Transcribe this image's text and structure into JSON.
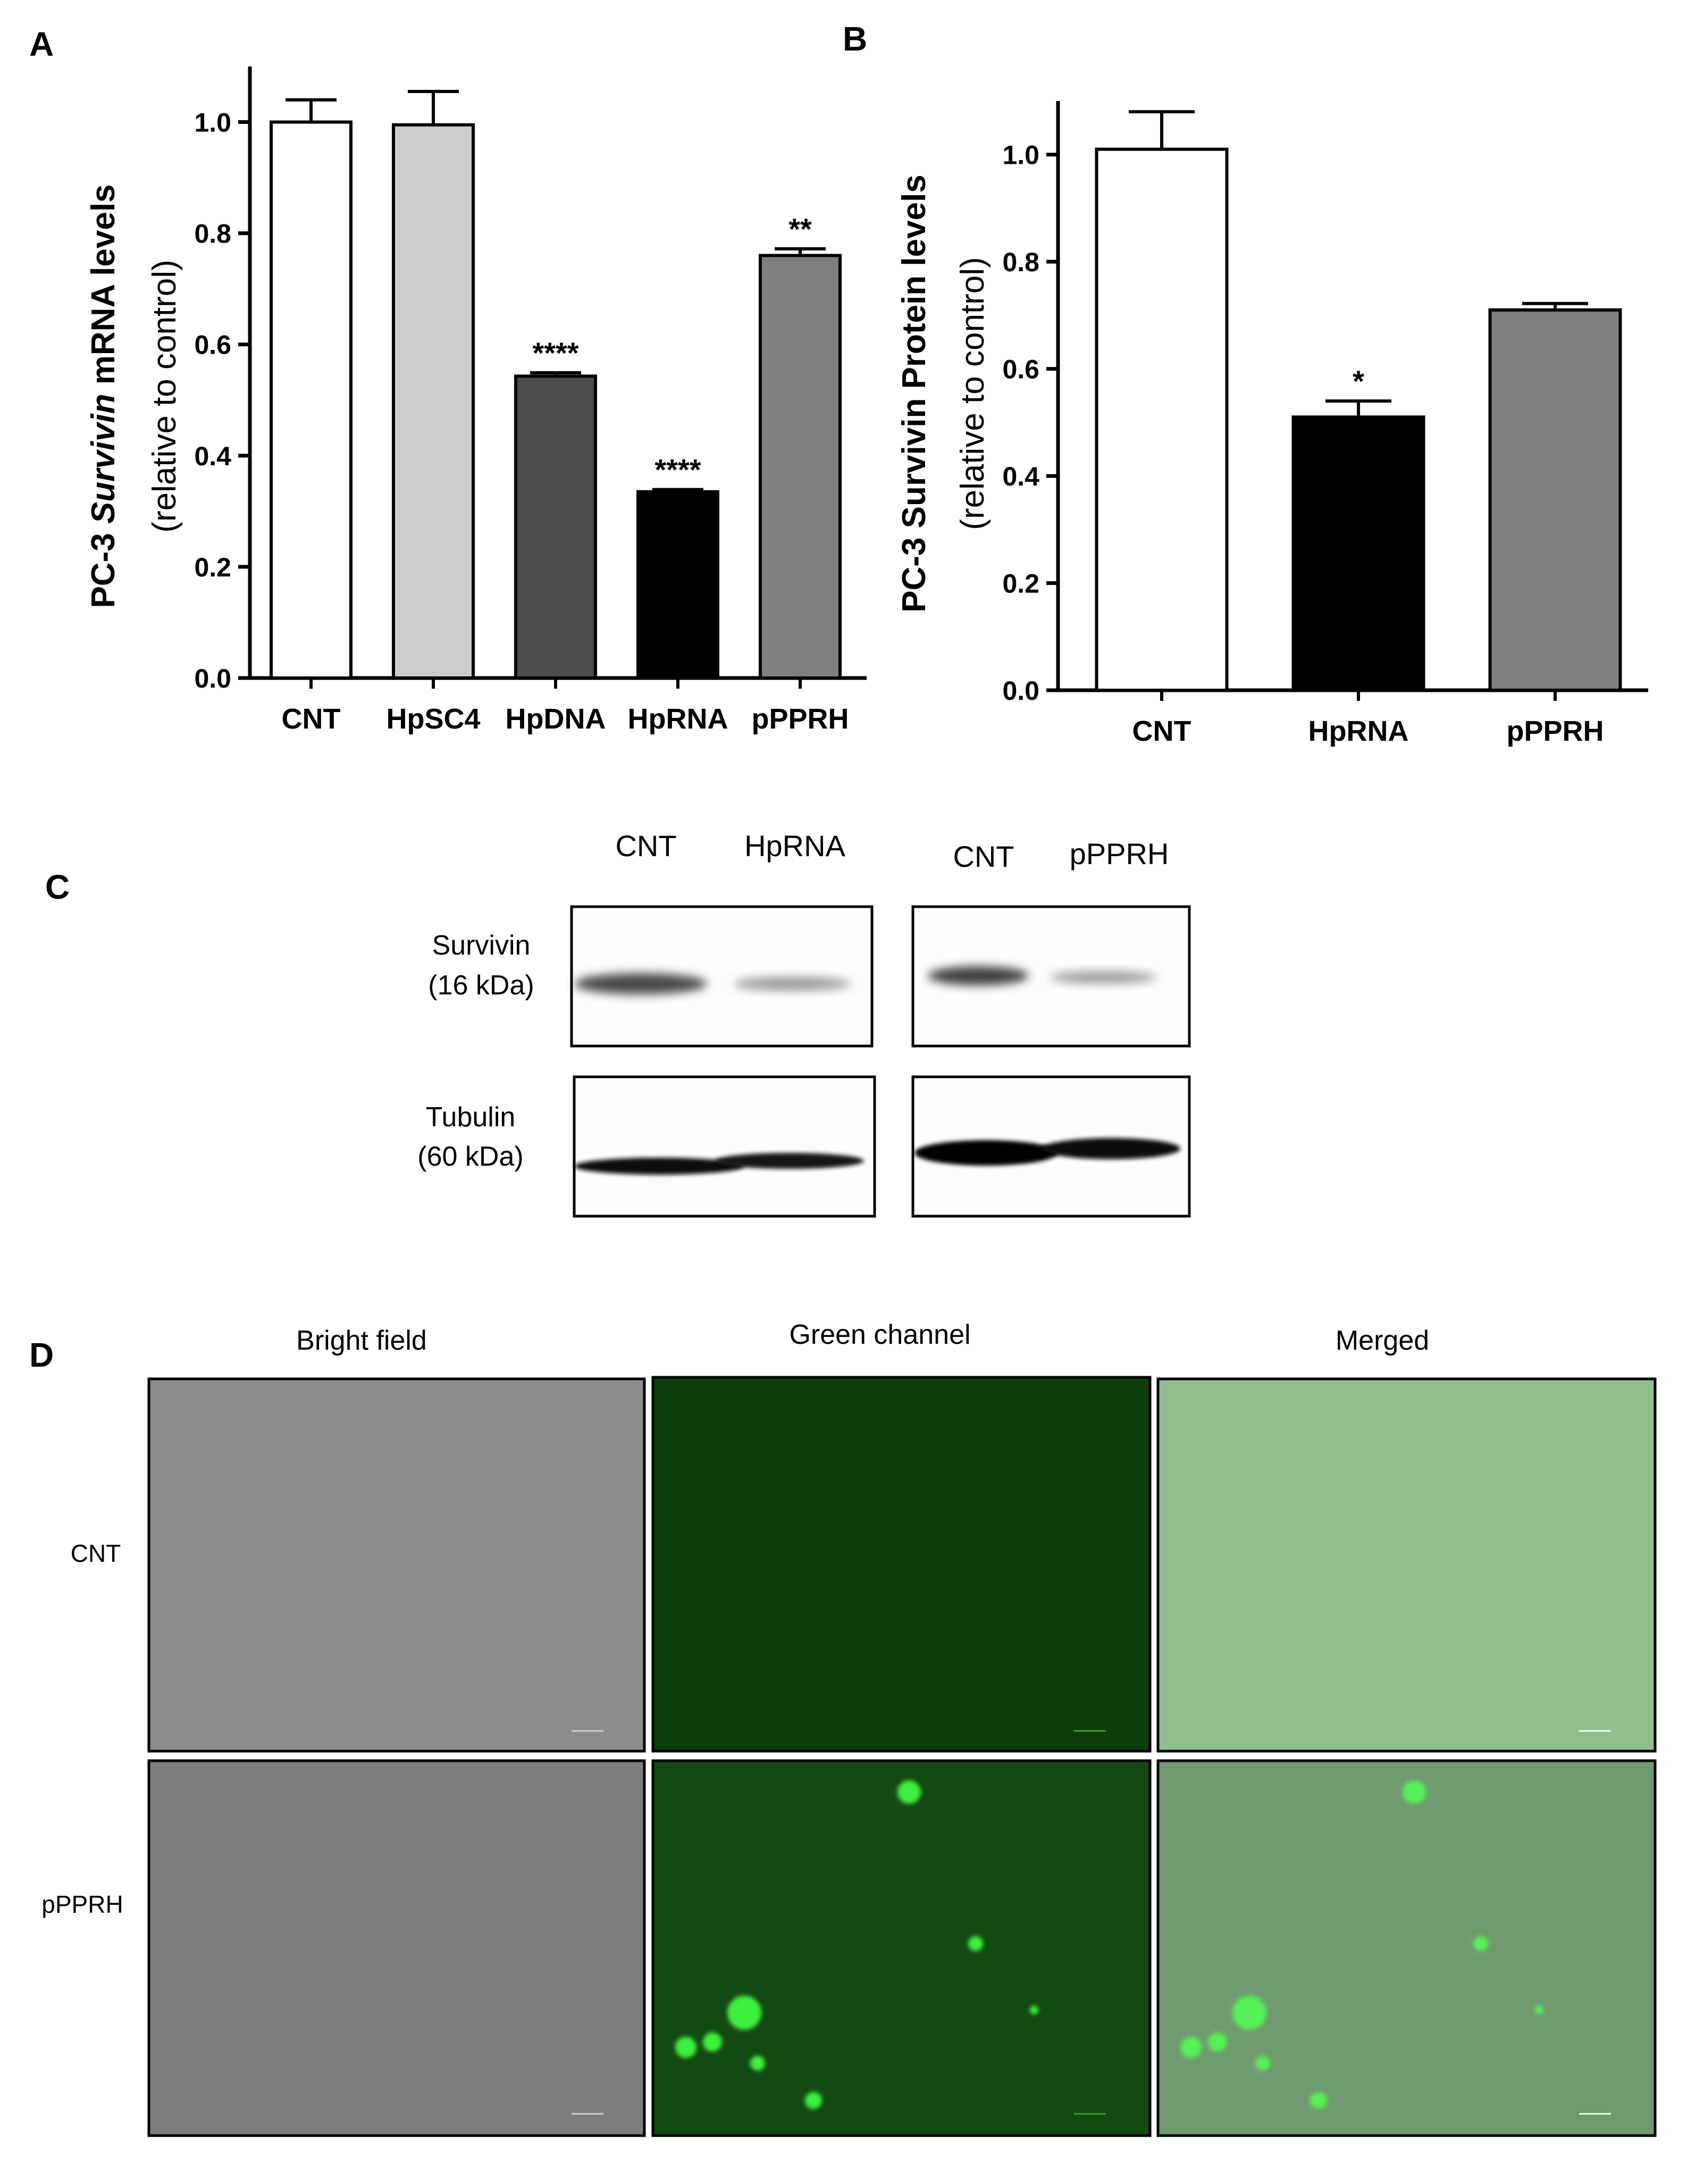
{
  "panels": {
    "a": "A",
    "b": "B",
    "c": "C",
    "d": "D"
  },
  "chart_data": [
    {
      "type": "bar",
      "panel": "A",
      "ylabel_line1_pre": "PC-3 ",
      "ylabel_line1_italic": "Survivin",
      "ylabel_line1_post": " mRNA levels",
      "ylabel_line2": "(relative to control)",
      "categories": [
        "CNT",
        "HpSC4",
        "HpDNA",
        "HpRNA",
        "pPPRH"
      ],
      "values": [
        1.0,
        0.995,
        0.543,
        0.335,
        0.76
      ],
      "errors": [
        0.04,
        0.06,
        0.006,
        0.004,
        0.012
      ],
      "significance": [
        "",
        "",
        "****",
        "****",
        "**"
      ],
      "colors": [
        "#ffffff",
        "#cccccc",
        "#4d4d4d",
        "#000000",
        "#808080"
      ],
      "ylim": [
        0,
        1.1
      ],
      "yticks": [
        "0.0",
        "0.2",
        "0.4",
        "0.6",
        "0.8",
        "1.0"
      ],
      "grid": false
    },
    {
      "type": "bar",
      "panel": "B",
      "ylabel_line1": "PC-3 Survivin Protein levels",
      "ylabel_line2": "(relative to control)",
      "categories": [
        "CNT",
        "HpRNA",
        "pPPRH"
      ],
      "values": [
        1.01,
        0.51,
        0.71
      ],
      "errors": [
        0.07,
        0.03,
        0.012
      ],
      "significance": [
        "",
        "*",
        ""
      ],
      "colors": [
        "#ffffff",
        "#000000",
        "#808080"
      ],
      "ylim": [
        0,
        1.1
      ],
      "yticks": [
        "0.0",
        "0.2",
        "0.4",
        "0.6",
        "0.8",
        "1.0"
      ],
      "grid": false
    }
  ],
  "blot": {
    "lanes_left": [
      "CNT",
      "HpRNA"
    ],
    "lanes_right": [
      "CNT",
      "pPPRH"
    ],
    "survivin_label": "Survivin",
    "survivin_kda": "(16 kDa)",
    "tubulin_label": "Tubulin",
    "tubulin_kda": "(60 kDa)"
  },
  "microscopy": {
    "columns": [
      "Bright field",
      "Green channel",
      "Merged"
    ],
    "rows": [
      "CNT",
      "pPPRH"
    ],
    "colors": {
      "bright": "#8a8a8a",
      "green_dark": "#0b3a0b",
      "green_mid": "#144d14",
      "merged_cnt": "#8fbf8f",
      "merged_pprh": "#6f9a6f",
      "cell": "#44ee44"
    }
  }
}
